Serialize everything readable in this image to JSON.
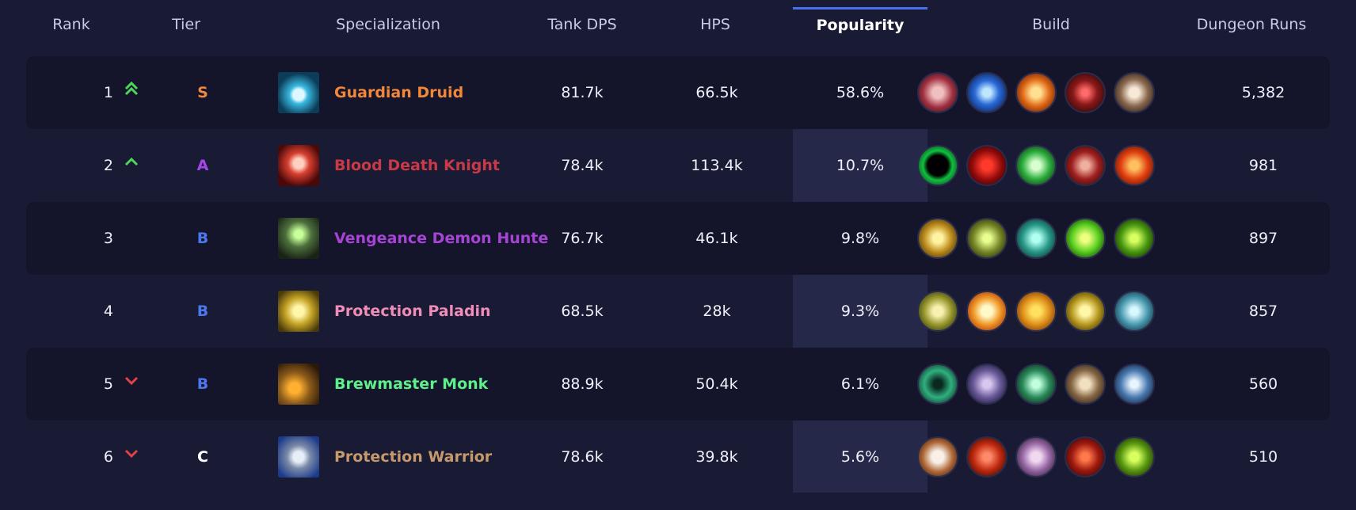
{
  "headers": {
    "rank": "Rank",
    "tier": "Tier",
    "spec": "Specialization",
    "tank_dps": "Tank DPS",
    "hps": "HPS",
    "popularity": "Popularity",
    "build": "Build",
    "runs": "Dungeon Runs"
  },
  "colors": {
    "tier_S": "#f0873a",
    "tier_A": "#a745e8",
    "tier_B": "#4b78f0",
    "tier_C": "#ffffff",
    "trend_up": "#4fd65a",
    "trend_down": "#e0424a"
  },
  "rows": [
    {
      "rank": "1",
      "trend": "double-up",
      "tier": "S",
      "spec": "Guardian Druid",
      "spec_color": "#f0873a",
      "spec_icon": "bear-paw-icon",
      "tank_dps": "81.7k",
      "hps": "66.5k",
      "popularity": "58.6%",
      "runs": "5,382",
      "build": [
        "claw-slash-icon",
        "blue-swipe-icon",
        "fire-bear-icon",
        "wolf-head-icon",
        "fang-claw-icon"
      ]
    },
    {
      "rank": "2",
      "trend": "up",
      "tier": "A",
      "spec": "Blood Death Knight",
      "spec_color": "#c93a48",
      "spec_icon": "blood-skull-icon",
      "tank_dps": "78.4k",
      "hps": "113.4k",
      "popularity": "10.7%",
      "runs": "981",
      "build": [
        "void-portal-icon",
        "blood-orb-icon",
        "green-skull-icon",
        "bone-claw-icon",
        "flame-heart-icon"
      ]
    },
    {
      "rank": "3",
      "trend": "none",
      "tier": "B",
      "spec": "Vengeance Demon Hunter",
      "spec_color": "#a743d6",
      "spec_icon": "fel-demon-icon",
      "tank_dps": "76.7k",
      "hps": "46.1k",
      "popularity": "9.8%",
      "runs": "897",
      "build": [
        "golden-glaive-icon",
        "demon-mask-icon",
        "teal-spirit-icon",
        "fel-swirl-icon",
        "fel-beast-icon"
      ]
    },
    {
      "rank": "4",
      "trend": "none",
      "tier": "B",
      "spec": "Protection Paladin",
      "spec_color": "#f08cb8",
      "spec_icon": "golden-helm-icon",
      "tank_dps": "68.5k",
      "hps": "28k",
      "popularity": "9.3%",
      "runs": "857",
      "build": [
        "lion-head-icon",
        "light-pillar-icon",
        "holy-figure-icon",
        "gold-helm-icon",
        "frost-armor-icon"
      ]
    },
    {
      "rank": "5",
      "trend": "down",
      "tier": "B",
      "spec": "Brewmaster Monk",
      "spec_color": "#5ef08a",
      "spec_icon": "brew-keg-icon",
      "tank_dps": "88.9k",
      "hps": "50.4k",
      "popularity": "6.1%",
      "runs": "560",
      "build": [
        "jade-swirl-icon",
        "storm-staff-icon",
        "jade-spirit-icon",
        "keg-shield-icon",
        "lightning-cloud-icon"
      ]
    },
    {
      "rank": "6",
      "trend": "down",
      "tier": "C",
      "spec": "Protection Warrior",
      "spec_color": "#c69a6b",
      "spec_icon": "shield-icon",
      "tank_dps": "78.6k",
      "hps": "39.8k",
      "popularity": "5.6%",
      "runs": "510",
      "build": [
        "round-shield-icon",
        "red-slash-icon",
        "shout-face-icon",
        "demon-face-icon",
        "green-orc-icon"
      ]
    }
  ]
}
